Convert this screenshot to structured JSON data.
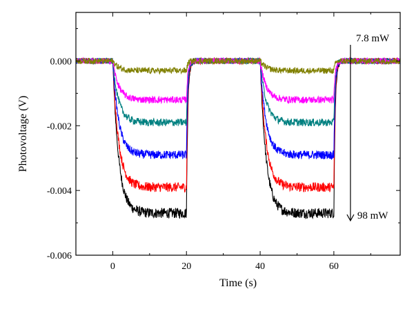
{
  "chart_data": {
    "type": "line",
    "xlabel": "Time (s)",
    "ylabel": "Photovoltage (V)",
    "xlim": [
      -10,
      78
    ],
    "ylim": [
      -0.006,
      0.0015
    ],
    "xticks": [
      0,
      20,
      40,
      60
    ],
    "xtick_labels": [
      "0",
      "20",
      "40",
      "60"
    ],
    "yticks": [
      0.0,
      -0.002,
      -0.004,
      -0.006
    ],
    "ytick_labels": [
      "0.000",
      "-0.002",
      "-0.004",
      "-0.006"
    ],
    "grid": false,
    "light_on_intervals": [
      [
        0,
        20
      ],
      [
        40,
        60
      ]
    ],
    "series": [
      {
        "color": "#000000",
        "plateau": -0.0047
      },
      {
        "color": "#ff0000",
        "plateau": -0.0039
      },
      {
        "color": "#0000ff",
        "plateau": -0.0029
      },
      {
        "color": "#008080",
        "plateau": -0.0019
      },
      {
        "color": "#ff00ff",
        "plateau": -0.0012
      },
      {
        "color": "#808000",
        "plateau": -0.0003
      }
    ],
    "annotations": {
      "top_label": "7.8 mW",
      "bottom_label": "98 mW",
      "arrow_x": 64.5
    }
  }
}
